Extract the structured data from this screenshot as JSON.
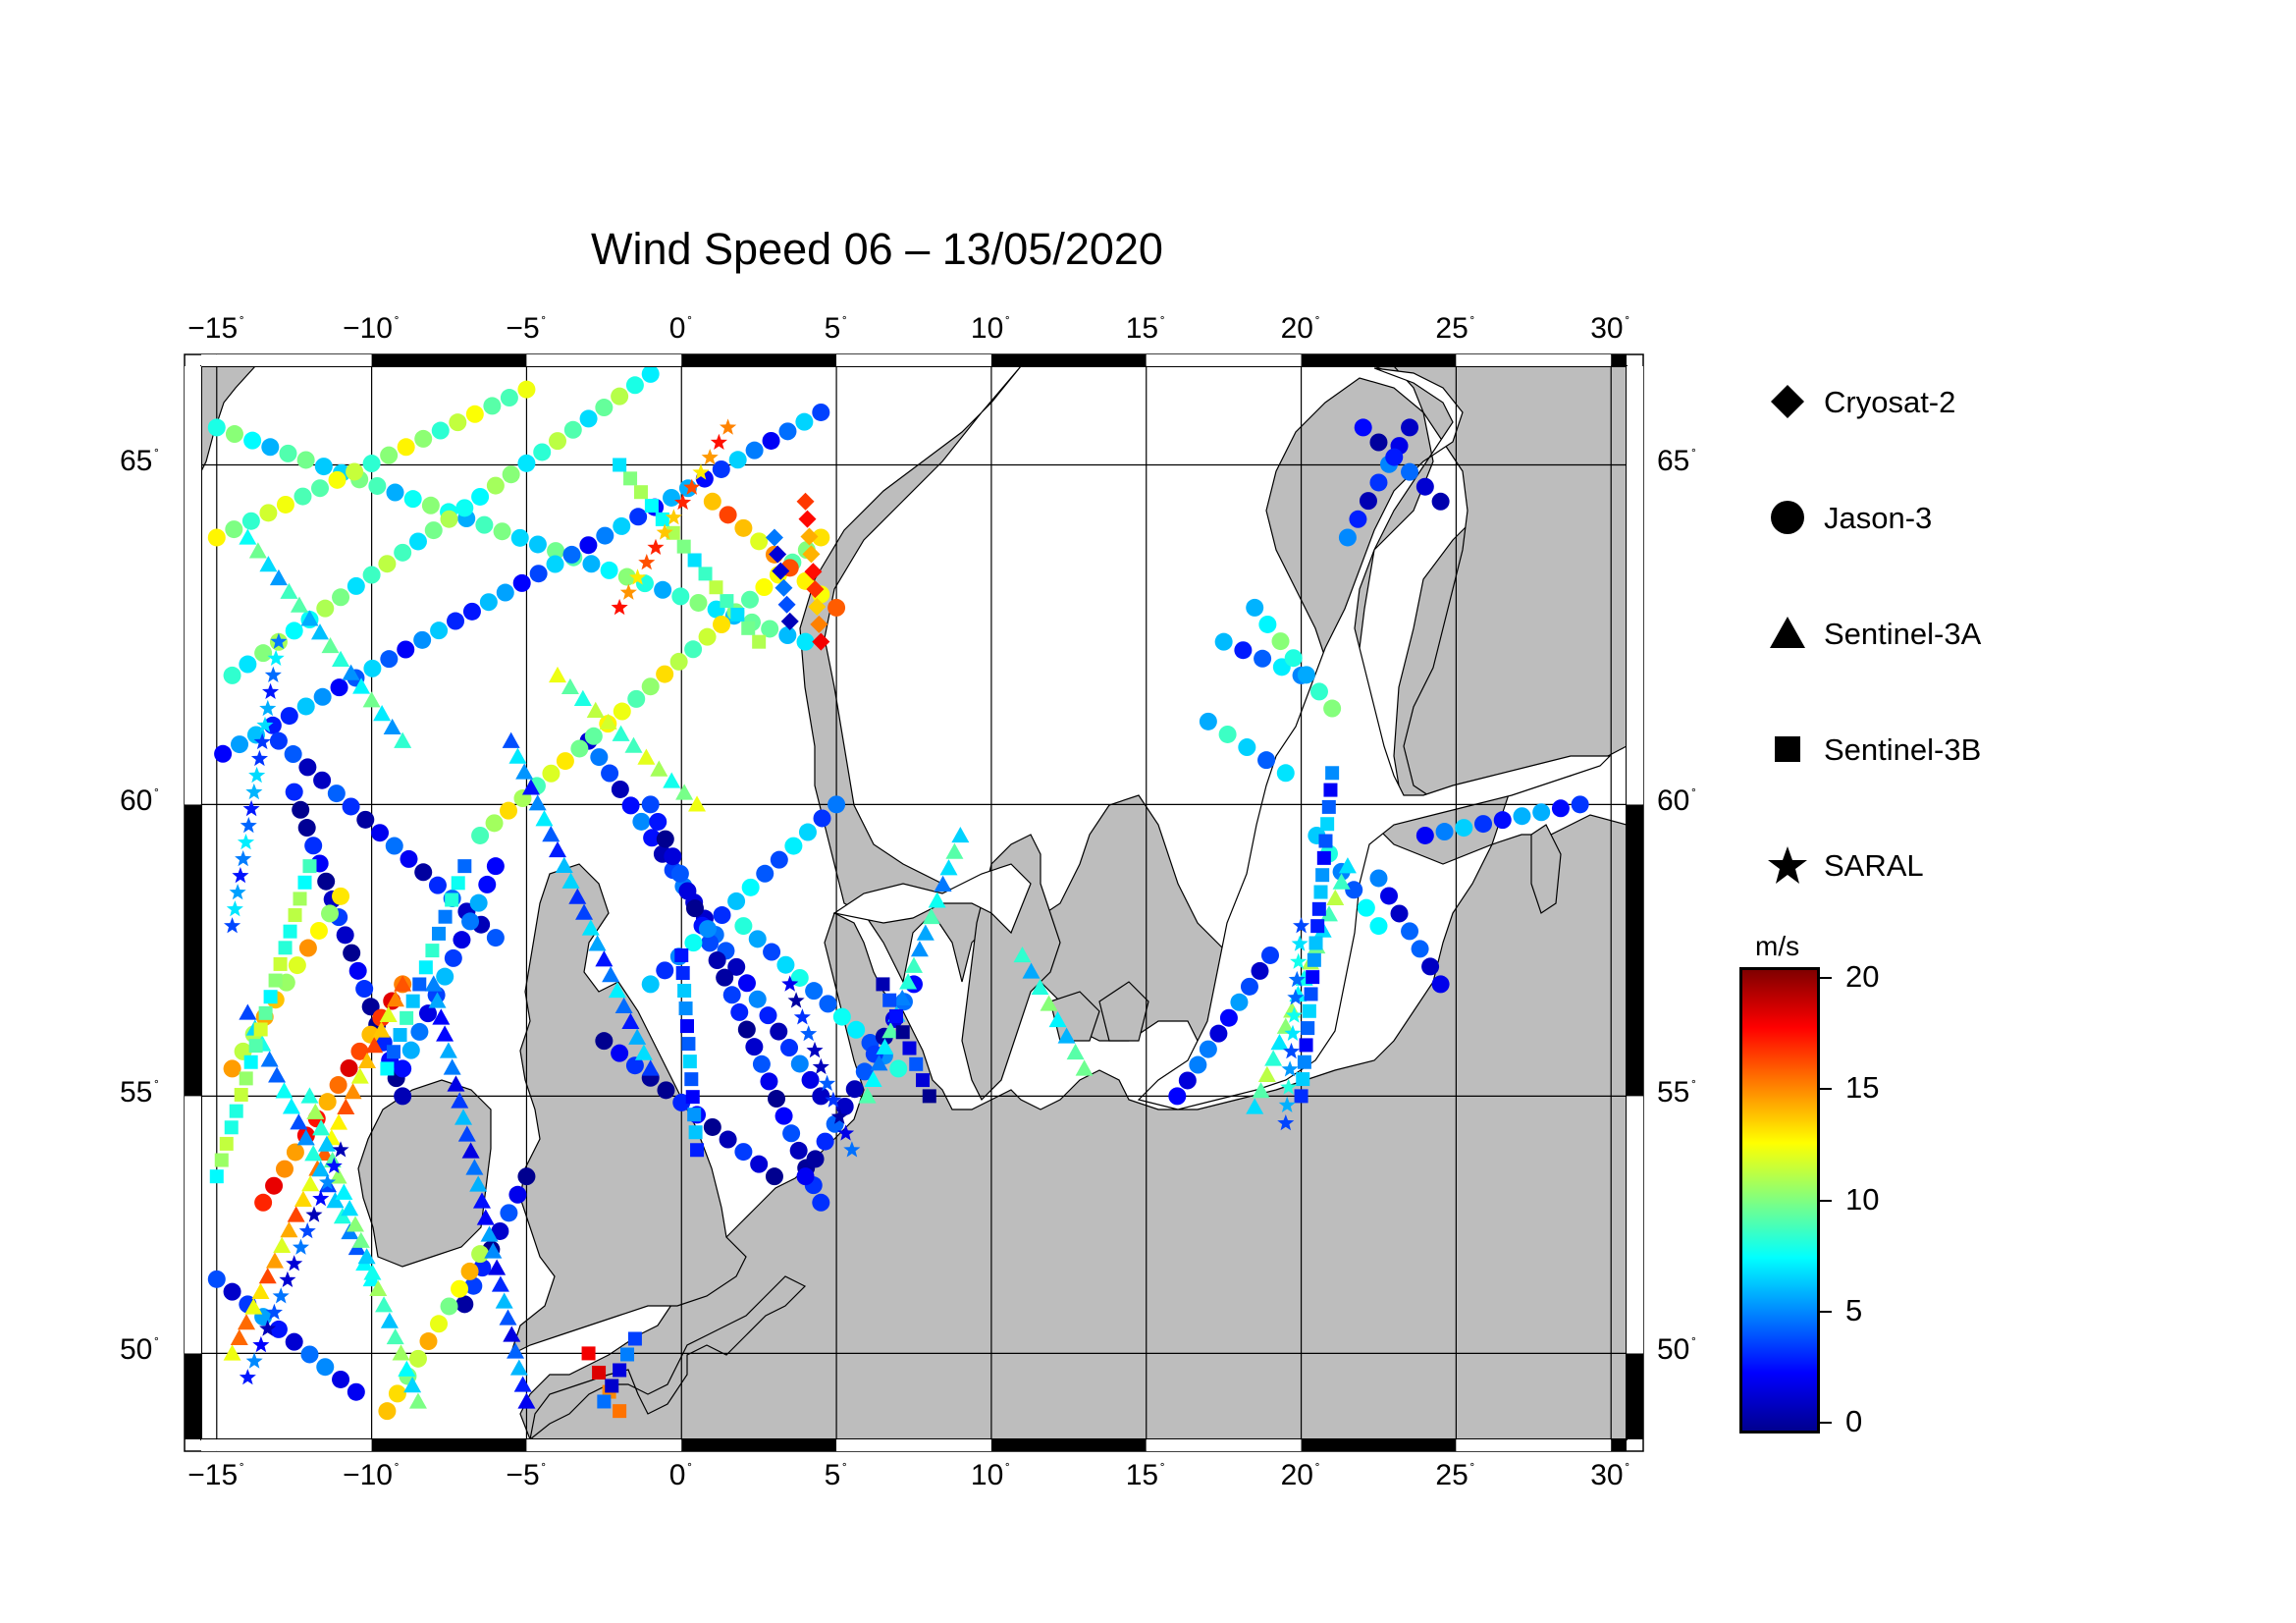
{
  "title": "Wind Speed 06 – 13/05/2020",
  "map": {
    "lon_range": [
      -15.5,
      30.5
    ],
    "lat_range": [
      48.2,
      66.3
    ],
    "lon_ticks": [
      -15,
      -10,
      -5,
      0,
      5,
      10,
      15,
      20,
      25,
      30
    ],
    "lat_ticks": [
      50,
      55,
      60,
      65
    ],
    "lon_labels": [
      "−15",
      "−10",
      "−5",
      "0",
      "5",
      "10",
      "15",
      "20",
      "25",
      "30"
    ],
    "lat_labels": [
      "50",
      "55",
      "60",
      "65"
    ],
    "degree_symbol": "˚",
    "land_color": "#bdbdbd",
    "sea_color": "#ffffff",
    "grid": true
  },
  "legend": {
    "items": [
      {
        "label": "Cryosat-2",
        "icon": "diamond"
      },
      {
        "label": "Jason-3",
        "icon": "circle"
      },
      {
        "label": "Sentinel-3A",
        "icon": "triangle"
      },
      {
        "label": "Sentinel-3B",
        "icon": "square"
      },
      {
        "label": "SARAL",
        "icon": "star"
      }
    ]
  },
  "colorbar": {
    "unit": "m/s",
    "min": 0,
    "max": 20,
    "tick_values": [
      0,
      5,
      10,
      15,
      20
    ],
    "tick_labels": [
      "0",
      "5",
      "10",
      "15",
      "20"
    ],
    "colormap": [
      "#00008f",
      "#0000ff",
      "#0080ff",
      "#00ffff",
      "#80ff80",
      "#ffff00",
      "#ff8000",
      "#ff0000",
      "#800000"
    ]
  },
  "chart_data": {
    "type": "scatter",
    "title": "Wind Speed 06 – 13/05/2020",
    "xlabel": "",
    "ylabel": "",
    "xlim": [
      -15.5,
      30.5
    ],
    "ylim": [
      48.2,
      66.3
    ],
    "color_by": "wind_speed_m_s",
    "tracks": [
      {
        "series": "Jason-3",
        "from": [
          -15.0,
          65.5
        ],
        "to": [
          4.0,
          62.5
        ],
        "speed": 8.0
      },
      {
        "series": "Jason-3",
        "from": [
          -15.0,
          64.0
        ],
        "to": [
          -5.0,
          66.0
        ],
        "speed": 10.5
      },
      {
        "series": "Jason-3",
        "from": [
          -14.5,
          62.0
        ],
        "to": [
          -1.0,
          66.2
        ],
        "speed": 9.0
      },
      {
        "series": "Jason-3",
        "from": [
          -14.8,
          60.8
        ],
        "to": [
          4.5,
          65.7
        ],
        "speed": 4.5
      },
      {
        "series": "Jason-3",
        "from": [
          -13.0,
          61.0
        ],
        "to": [
          -6.0,
          57.8
        ],
        "speed": 2.5
      },
      {
        "series": "Jason-3",
        "from": [
          -12.5,
          60.2
        ],
        "to": [
          -9.0,
          55.0
        ],
        "speed": 1.5
      },
      {
        "series": "Jason-3",
        "from": [
          -6.0,
          59.0
        ],
        "to": [
          -9.0,
          55.5
        ],
        "speed": 4.0
      },
      {
        "series": "Jason-3",
        "from": [
          -3.0,
          61.0
        ],
        "to": [
          4.5,
          55.0
        ],
        "speed": 3.0
      },
      {
        "series": "Jason-3",
        "from": [
          -1.0,
          60.0
        ],
        "to": [
          4.5,
          53.0
        ],
        "speed": 2.0
      },
      {
        "series": "Jason-3",
        "from": [
          -1.0,
          57.0
        ],
        "to": [
          5.0,
          60.0
        ],
        "speed": 5.5
      },
      {
        "series": "Jason-3",
        "from": [
          -6.5,
          59.5
        ],
        "to": [
          4.5,
          64.0
        ],
        "speed": 11.0
      },
      {
        "series": "Jason-3",
        "from": [
          1.0,
          64.5
        ],
        "to": [
          5.0,
          63.0
        ],
        "speed": 14.0
      },
      {
        "series": "Jason-3",
        "from": [
          2.0,
          58.0
        ],
        "to": [
          7.0,
          55.5
        ],
        "speed": 6.0
      },
      {
        "series": "Jason-3",
        "from": [
          4.0,
          53.5
        ],
        "to": [
          7.5,
          57.0
        ],
        "speed": 2.5
      },
      {
        "series": "Jason-3",
        "from": [
          -2.5,
          56.0
        ],
        "to": [
          3.0,
          53.5
        ],
        "speed": 1.5
      },
      {
        "series": "Jason-3",
        "from": [
          -13.5,
          53.0
        ],
        "to": [
          -9.0,
          57.0
        ],
        "speed": 16.0
      },
      {
        "series": "Jason-3",
        "from": [
          -14.5,
          55.5
        ],
        "to": [
          -11.0,
          58.5
        ],
        "speed": 12.5
      },
      {
        "series": "Jason-3",
        "from": [
          -10.5,
          49.2
        ],
        "to": [
          -15.0,
          51.5
        ],
        "speed": 3.5
      },
      {
        "series": "Jason-3",
        "from": [
          -7.0,
          51.0
        ],
        "to": [
          -5.0,
          53.5
        ],
        "speed": 2.0
      },
      {
        "series": "Jason-3",
        "from": [
          -9.5,
          48.8
        ],
        "to": [
          -6.5,
          52.0
        ],
        "speed": 12.0
      },
      {
        "series": "Jason-3",
        "from": [
          17.5,
          62.5
        ],
        "to": [
          20.0,
          62.0
        ],
        "speed": 5.0
      },
      {
        "series": "Jason-3",
        "from": [
          18.5,
          63.0
        ],
        "to": [
          21.0,
          61.5
        ],
        "speed": 8.0
      },
      {
        "series": "Jason-3",
        "from": [
          17.0,
          61.3
        ],
        "to": [
          19.5,
          60.5
        ],
        "speed": 6.5
      },
      {
        "series": "Jason-3",
        "from": [
          21.5,
          64.0
        ],
        "to": [
          23.5,
          65.5
        ],
        "speed": 3.0
      },
      {
        "series": "Jason-3",
        "from": [
          22.0,
          65.5
        ],
        "to": [
          24.5,
          64.5
        ],
        "speed": 2.5
      },
      {
        "series": "Jason-3",
        "from": [
          24.0,
          59.5
        ],
        "to": [
          29.0,
          60.0
        ],
        "speed": 4.5
      },
      {
        "series": "Jason-3",
        "from": [
          20.5,
          59.5
        ],
        "to": [
          22.5,
          58.0
        ],
        "speed": 6.0
      },
      {
        "series": "Jason-3",
        "from": [
          22.5,
          58.8
        ],
        "to": [
          24.5,
          57.0
        ],
        "speed": 3.0
      },
      {
        "series": "Jason-3",
        "from": [
          16.0,
          55.0
        ],
        "to": [
          19.0,
          57.5
        ],
        "speed": 3.5
      },
      {
        "series": "Sentinel-3A",
        "from": [
          -14.5,
          50.0
        ],
        "to": [
          -9.0,
          57.0
        ],
        "speed": 14.0
      },
      {
        "series": "Sentinel-3A",
        "from": [
          -10.0,
          51.5
        ],
        "to": [
          -14.0,
          56.5
        ],
        "speed": 6.0
      },
      {
        "series": "Sentinel-3A",
        "from": [
          -8.5,
          49.0
        ],
        "to": [
          -12.0,
          55.0
        ],
        "speed": 8.5
      },
      {
        "series": "Sentinel-3A",
        "from": [
          -5.0,
          49.0
        ],
        "to": [
          -8.0,
          57.0
        ],
        "speed": 4.0
      },
      {
        "series": "Sentinel-3A",
        "from": [
          -5.5,
          61.0
        ],
        "to": [
          -1.0,
          55.5
        ],
        "speed": 5.0
      },
      {
        "series": "Sentinel-3A",
        "from": [
          6.0,
          55.0
        ],
        "to": [
          9.0,
          59.5
        ],
        "speed": 7.0
      },
      {
        "series": "Sentinel-3A",
        "from": [
          11.0,
          57.5
        ],
        "to": [
          13.0,
          55.5
        ],
        "speed": 8.0
      },
      {
        "series": "Sentinel-3A",
        "from": [
          18.5,
          54.8
        ],
        "to": [
          21.5,
          59.0
        ],
        "speed": 9.0
      },
      {
        "series": "Sentinel-3A",
        "from": [
          -14.0,
          64.0
        ],
        "to": [
          -9.0,
          61.0
        ],
        "speed": 7.5
      },
      {
        "series": "Sentinel-3A",
        "from": [
          -4.0,
          62.0
        ],
        "to": [
          0.5,
          60.0
        ],
        "speed": 10.0
      },
      {
        "series": "Sentinel-3B",
        "from": [
          -12.0,
          59.0
        ],
        "to": [
          -15.0,
          53.5
        ],
        "speed": 9.5
      },
      {
        "series": "Sentinel-3B",
        "from": [
          -7.0,
          59.0
        ],
        "to": [
          -9.5,
          55.5
        ],
        "speed": 6.5
      },
      {
        "series": "Sentinel-3B",
        "from": [
          -3.0,
          50.0
        ],
        "to": [
          -2.0,
          48.8
        ],
        "speed": 16.5
      },
      {
        "series": "Sentinel-3B",
        "from": [
          -2.5,
          49.0
        ],
        "to": [
          -1.5,
          50.3
        ],
        "speed": 3.0
      },
      {
        "series": "Sentinel-3B",
        "from": [
          0.0,
          57.5
        ],
        "to": [
          0.5,
          54.0
        ],
        "speed": 4.5
      },
      {
        "series": "Sentinel-3B",
        "from": [
          6.5,
          57.0
        ],
        "to": [
          8.0,
          55.0
        ],
        "speed": 2.0
      },
      {
        "series": "Sentinel-3B",
        "from": [
          2.5,
          62.5
        ],
        "to": [
          -2.0,
          65.0
        ],
        "speed": 9.0
      },
      {
        "series": "Sentinel-3B",
        "from": [
          21.0,
          60.5
        ],
        "to": [
          20.0,
          55.0
        ],
        "speed": 4.5
      },
      {
        "series": "SARAL",
        "from": [
          -11.0,
          54.0
        ],
        "to": [
          -14.0,
          49.5
        ],
        "speed": 3.0
      },
      {
        "series": "SARAL",
        "from": [
          -13.0,
          62.5
        ],
        "to": [
          -14.5,
          58.0
        ],
        "speed": 5.0
      },
      {
        "series": "SARAL",
        "from": [
          -2.0,
          63.0
        ],
        "to": [
          1.5,
          65.5
        ],
        "speed": 15.0
      },
      {
        "series": "SARAL",
        "from": [
          3.5,
          57.0
        ],
        "to": [
          5.5,
          54.0
        ],
        "speed": 2.5
      },
      {
        "series": "SARAL",
        "from": [
          20.0,
          58.0
        ],
        "to": [
          19.5,
          54.5
        ],
        "speed": 6.0
      },
      {
        "series": "Cryosat-2",
        "from": [
          4.0,
          64.5
        ],
        "to": [
          4.5,
          62.5
        ],
        "speed": 15.5
      },
      {
        "series": "Cryosat-2",
        "from": [
          3.0,
          64.0
        ],
        "to": [
          3.5,
          62.8
        ],
        "speed": 3.0
      }
    ]
  }
}
